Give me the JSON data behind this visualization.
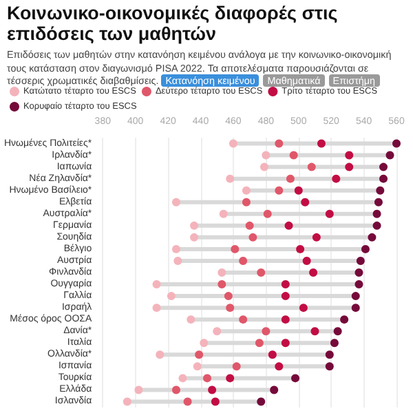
{
  "chart_data": {
    "type": "scatter",
    "orientation": "horizontal",
    "title": "Κοινωνικο-οικονομικές διαφορές στις επιδόσεις των μαθητών",
    "subtitle": "Επιδόσεις των μαθητών στην κατανόηση κειμένου ανάλογα με την κοινωνικο-οικονομική τους κατάσταση στον διαγωνισμό PISA 2022. Τα αποτελέσματα παρουσιάζονται σε τέσσερις χρωματικές διαβαθμίσεις.",
    "annotations": [
      "Κατανόηση κειμένου",
      "Μαθηματικά",
      "Επιστήμη"
    ],
    "categories": [
      "Ηνωμένες Πολιτείες*",
      "Ιρλανδία*",
      "Ιαπωνία",
      "Νέα Ζηλανδία*",
      "Ηνωμένο Βασίλειο*",
      "Ελβετία",
      "Αυστραλία*",
      "Γερμανία",
      "Σουηδία",
      "Βέλγιο",
      "Αυστρία",
      "Φινλανδία",
      "Ουγγαρία",
      "Γαλλία",
      "Ισραήλ",
      "Μέσος όρος ΟΟΣΑ",
      "Δανία*",
      "Ιταλία",
      "Ολλανδία*",
      "Ισπανία",
      "Τουρκία",
      "Ελλάδα",
      "Ισλανδία"
    ],
    "series": [
      {
        "name": "Κατώτατο τέταρτο του ESCS",
        "color": "#f4b3bb",
        "values": [
          460,
          480,
          479,
          458,
          468,
          425,
          454,
          436,
          436,
          425,
          426,
          453,
          413,
          422,
          413,
          434,
          450,
          442,
          415,
          438,
          429,
          402,
          395
        ]
      },
      {
        "name": "Δεύτερο τέταρτο του ESCS",
        "color": "#e0576a",
        "values": [
          488,
          497,
          508,
          495,
          488,
          468,
          481,
          470,
          472,
          461,
          466,
          477,
          453,
          457,
          458,
          466,
          480,
          476,
          439,
          462,
          444,
          425,
          432
        ]
      },
      {
        "name": "Τρίτο τέταρτο του ESCS",
        "color": "#c20d44",
        "values": [
          514,
          531,
          531,
          523,
          500,
          504,
          519,
          494,
          511,
          501,
          505,
          509,
          492,
          492,
          503,
          492,
          510,
          492,
          484,
          488,
          458,
          447,
          449
        ]
      },
      {
        "name": "Κορυφαίο τέταρτο του ESCS",
        "color": "#750a3a",
        "values": [
          560,
          556,
          552,
          552,
          550,
          549,
          548,
          548,
          545,
          541,
          538,
          537,
          537,
          535,
          535,
          528,
          524,
          522,
          519,
          519,
          498,
          485,
          477
        ]
      }
    ],
    "xlim": [
      380,
      560
    ],
    "xticks": [
      380,
      400,
      420,
      440,
      460,
      480,
      500,
      520,
      540,
      560
    ],
    "grid": "x",
    "legend": "top",
    "marker": "circle"
  }
}
